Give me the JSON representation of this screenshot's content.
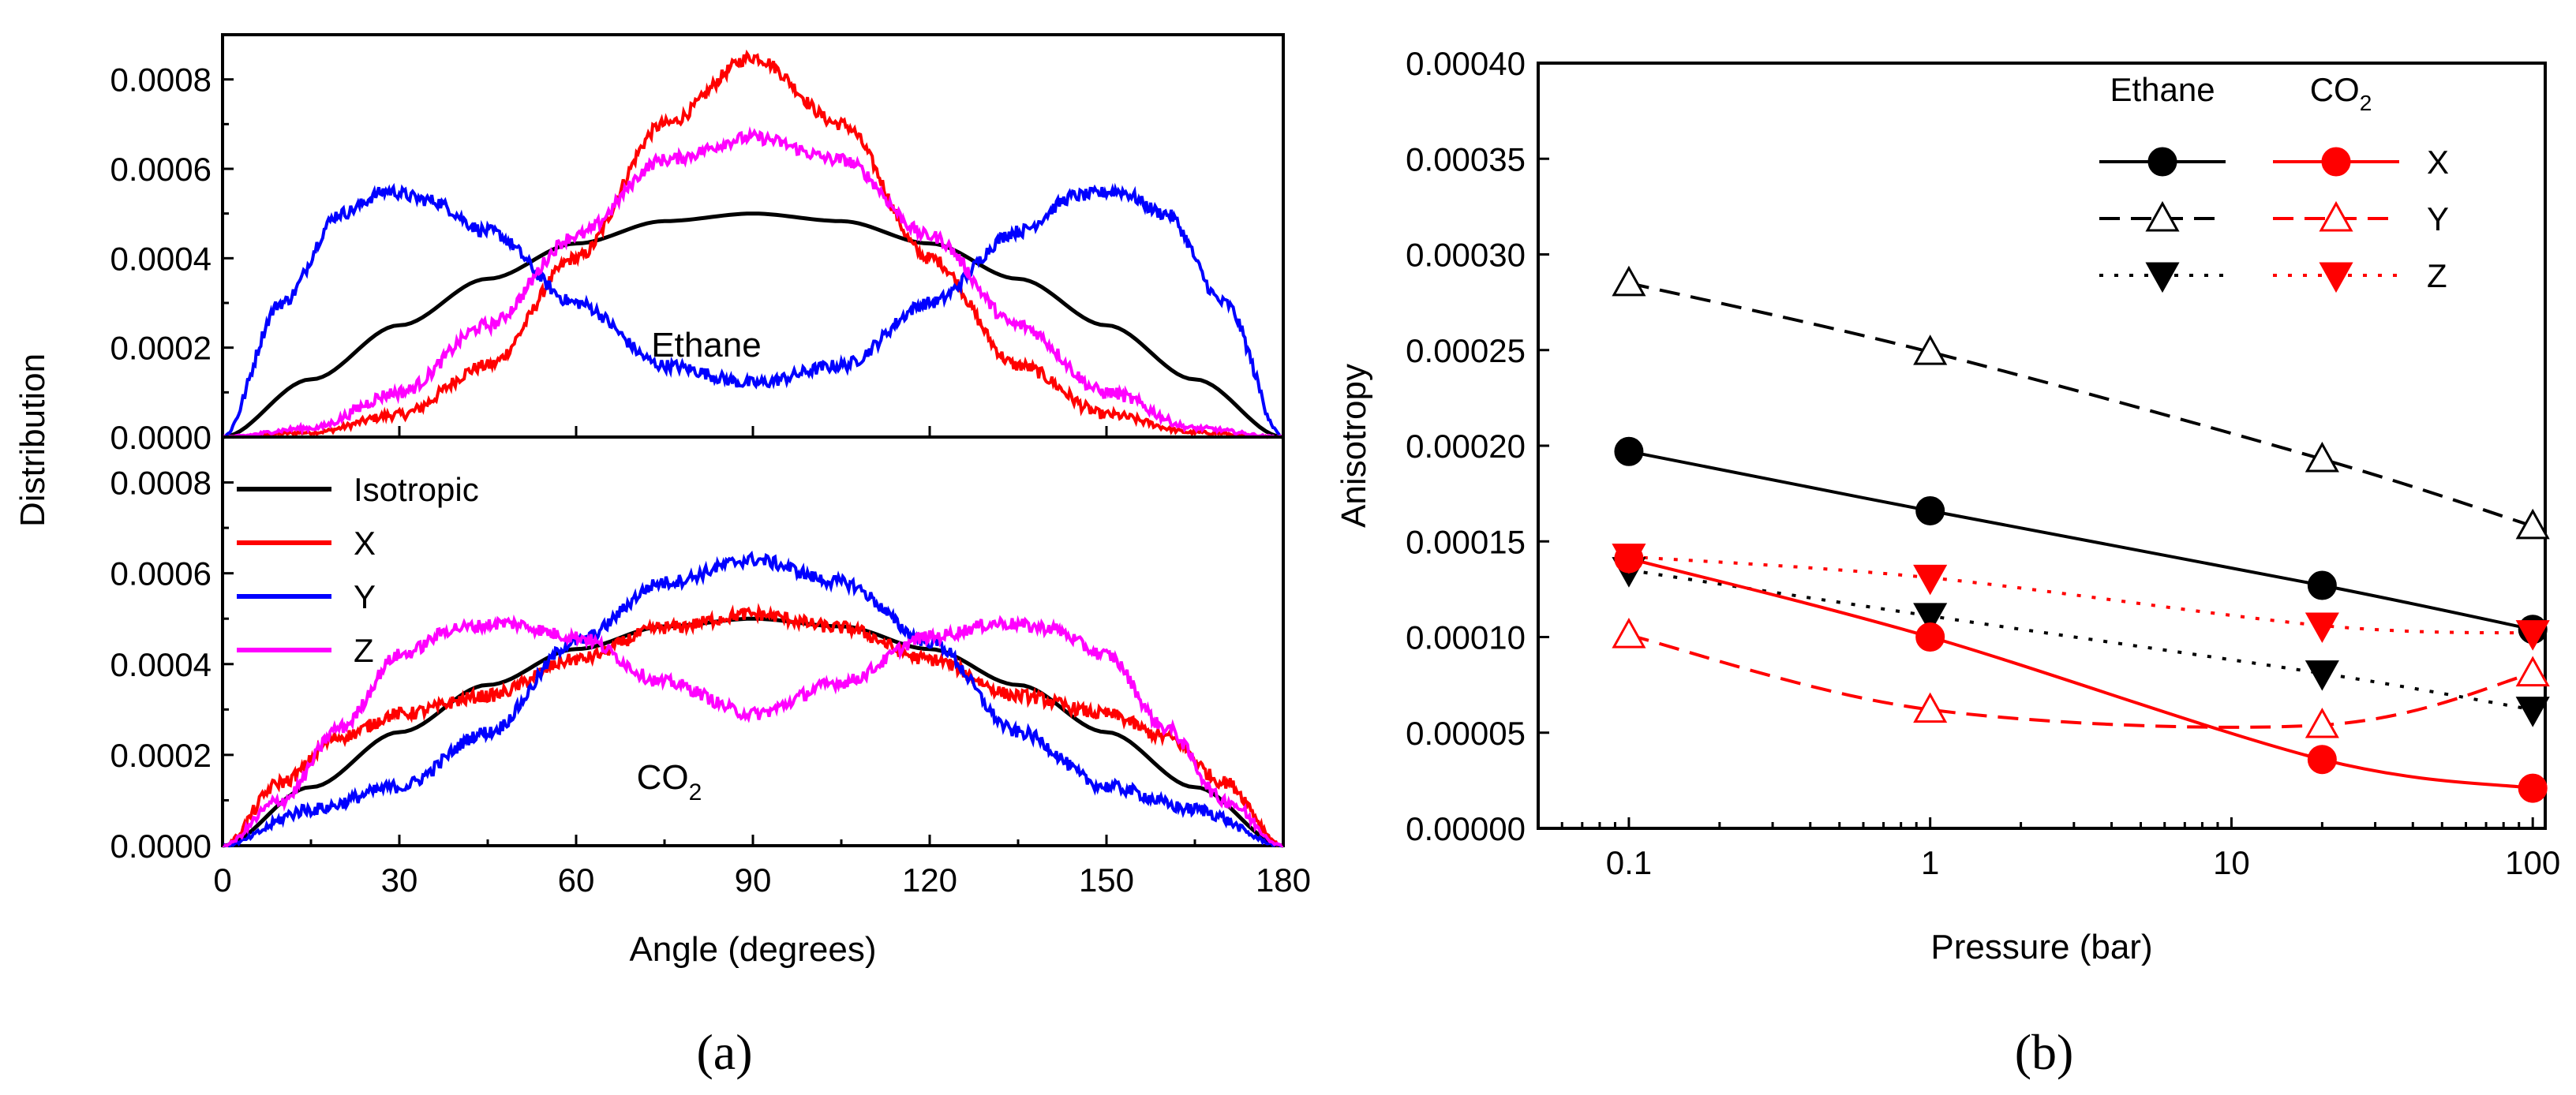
{
  "chart_data": [
    {
      "id": "a",
      "type": "line",
      "caption": "(a)",
      "xlabel": "Angle (degrees)",
      "ylabel": "Distribution",
      "xlim": [
        0,
        180
      ],
      "xticks": [
        0,
        30,
        60,
        90,
        120,
        150,
        180
      ],
      "legend": {
        "placement": "upper-left of bottom panel",
        "entries": [
          {
            "name": "Isotropic",
            "color": "#000000"
          },
          {
            "name": "X",
            "color": "#ff0000"
          },
          {
            "name": "Y",
            "color": "#0000ff"
          },
          {
            "name": "Z",
            "color": "#ff00ff"
          }
        ]
      },
      "panels": [
        {
          "label_main": "Ethane",
          "label_sub": "",
          "ylim": [
            0,
            0.0009
          ],
          "yticks": [
            "0.0000",
            "0.0002",
            "0.0004",
            "0.0006",
            "0.0008"
          ],
          "series": [
            {
              "name": "Isotropic",
              "color": "#000000",
              "noisy": false,
              "x": [
                0,
                15,
                30,
                45,
                60,
                75,
                90,
                105,
                120,
                135,
                150,
                165,
                180
              ],
              "y": [
                0,
                0.000129,
                0.00025,
                0.000354,
                0.000433,
                0.000483,
                0.0005,
                0.000483,
                0.000433,
                0.000354,
                0.00025,
                0.000129,
                0
              ]
            },
            {
              "name": "X",
              "color": "#ff0000",
              "noisy": true,
              "x": [
                0,
                15,
                30,
                45,
                60,
                75,
                90,
                105,
                120,
                135,
                150,
                165,
                180
              ],
              "y": [
                0,
                1e-05,
                5e-05,
                0.00016,
                0.0004,
                0.0007,
                0.00085,
                0.0007,
                0.0004,
                0.00016,
                5e-05,
                1e-05,
                0
              ]
            },
            {
              "name": "Y",
              "color": "#0000ff",
              "noisy": true,
              "x": [
                0,
                10,
                20,
                28,
                35,
                45,
                60,
                75,
                90,
                105,
                120,
                135,
                145,
                152,
                160,
                170,
                180
              ],
              "y": [
                0,
                0.0003,
                0.0005,
                0.00055,
                0.00053,
                0.00046,
                0.0003,
                0.00016,
                0.00012,
                0.00016,
                0.0003,
                0.00046,
                0.00054,
                0.00055,
                0.0005,
                0.0003,
                0
              ]
            },
            {
              "name": "Z",
              "color": "#ff00ff",
              "noisy": true,
              "x": [
                0,
                15,
                30,
                45,
                60,
                75,
                90,
                105,
                120,
                135,
                150,
                165,
                180
              ],
              "y": [
                0,
                2e-05,
                0.0001,
                0.00025,
                0.00045,
                0.00062,
                0.00067,
                0.00062,
                0.00045,
                0.00025,
                0.0001,
                2e-05,
                0
              ]
            }
          ]
        },
        {
          "label_main": "CO",
          "label_sub": "2",
          "ylim": [
            0,
            0.0009
          ],
          "yticks": [
            "0.0000",
            "0.0002",
            "0.0004",
            "0.0006",
            "0.0008"
          ],
          "series": [
            {
              "name": "Isotropic",
              "color": "#000000",
              "noisy": false,
              "x": [
                0,
                15,
                30,
                45,
                60,
                75,
                90,
                105,
                120,
                135,
                150,
                165,
                180
              ],
              "y": [
                0,
                0.000129,
                0.00025,
                0.000354,
                0.000433,
                0.000483,
                0.0005,
                0.000483,
                0.000433,
                0.000354,
                0.00025,
                0.000129,
                0
              ]
            },
            {
              "name": "X",
              "color": "#ff0000",
              "noisy": true,
              "x": [
                0,
                10,
                20,
                30,
                45,
                60,
                75,
                90,
                105,
                120,
                135,
                150,
                160,
                170,
                180
              ],
              "y": [
                0,
                0.00014,
                0.00024,
                0.00029,
                0.00033,
                0.00041,
                0.00048,
                0.00051,
                0.00048,
                0.00041,
                0.00033,
                0.00029,
                0.00024,
                0.00014,
                0
              ]
            },
            {
              "name": "Y",
              "color": "#0000ff",
              "noisy": true,
              "x": [
                0,
                15,
                30,
                45,
                60,
                75,
                90,
                105,
                120,
                135,
                150,
                165,
                180
              ],
              "y": [
                0,
                8e-05,
                0.00013,
                0.00025,
                0.00045,
                0.00058,
                0.00063,
                0.00058,
                0.00045,
                0.00025,
                0.00013,
                8e-05,
                0
              ]
            },
            {
              "name": "Z",
              "color": "#ff00ff",
              "noisy": true,
              "x": [
                0,
                10,
                20,
                30,
                40,
                48,
                60,
                75,
                90,
                105,
                120,
                132,
                140,
                150,
                160,
                170,
                180
              ],
              "y": [
                0,
                0.0001,
                0.00026,
                0.00042,
                0.00048,
                0.00049,
                0.00046,
                0.00036,
                0.00029,
                0.00036,
                0.00046,
                0.00049,
                0.00048,
                0.00042,
                0.00026,
                0.0001,
                0
              ]
            }
          ]
        }
      ]
    },
    {
      "id": "b",
      "type": "line",
      "caption": "(b)",
      "xlabel": "Pressure (bar)",
      "ylabel": "Anisotropy",
      "xscale": "log",
      "xlim": [
        0.05,
        110
      ],
      "ylim": [
        0,
        0.0004
      ],
      "xticks": [
        {
          "v": 0.1,
          "label": "0.1"
        },
        {
          "v": 1,
          "label": "1"
        },
        {
          "v": 10,
          "label": "10"
        },
        {
          "v": 100,
          "label": "100"
        }
      ],
      "yticks": [
        "0.00000",
        "0.00005",
        "0.00010",
        "0.00015",
        "0.00020",
        "0.00025",
        "0.00030",
        "0.00035",
        "0.00040"
      ],
      "legend": {
        "placement": "top-right",
        "headers": [
          "Ethane",
          "CO",
          "2"
        ],
        "rows": [
          "X",
          "Y",
          "Z"
        ]
      },
      "x": [
        0.1,
        1,
        20,
        100
      ],
      "series": [
        {
          "name": "Ethane X",
          "color": "#000000",
          "dash": "solid",
          "marker": "circle",
          "filled": true,
          "y": [
            0.000197,
            0.000166,
            0.000127,
            0.000104
          ]
        },
        {
          "name": "Ethane Y",
          "color": "#000000",
          "dash": "dashed",
          "marker": "triangle-up",
          "filled": false,
          "y": [
            0.000285,
            0.000249,
            0.000193,
            0.000158
          ]
        },
        {
          "name": "Ethane Z",
          "color": "#000000",
          "dash": "dotted",
          "marker": "triangle-down",
          "filled": true,
          "y": [
            0.000135,
            0.000111,
            8.1e-05,
            6.2e-05
          ]
        },
        {
          "name": "CO2 X",
          "color": "#ff0000",
          "dash": "solid",
          "marker": "circle",
          "filled": true,
          "y": [
            0.000141,
            0.0001,
            3.6e-05,
            2.1e-05
          ]
        },
        {
          "name": "CO2 Y",
          "color": "#ff0000",
          "dash": "dashed",
          "marker": "triangle-up",
          "filled": false,
          "y": [
            0.000101,
            6.2e-05,
            5.4e-05,
            8.1e-05
          ]
        },
        {
          "name": "CO2 Z",
          "color": "#ff0000",
          "dash": "dotted",
          "marker": "triangle-down",
          "filled": true,
          "y": [
            0.000142,
            0.000131,
            0.000106,
            0.000102
          ]
        }
      ]
    }
  ]
}
